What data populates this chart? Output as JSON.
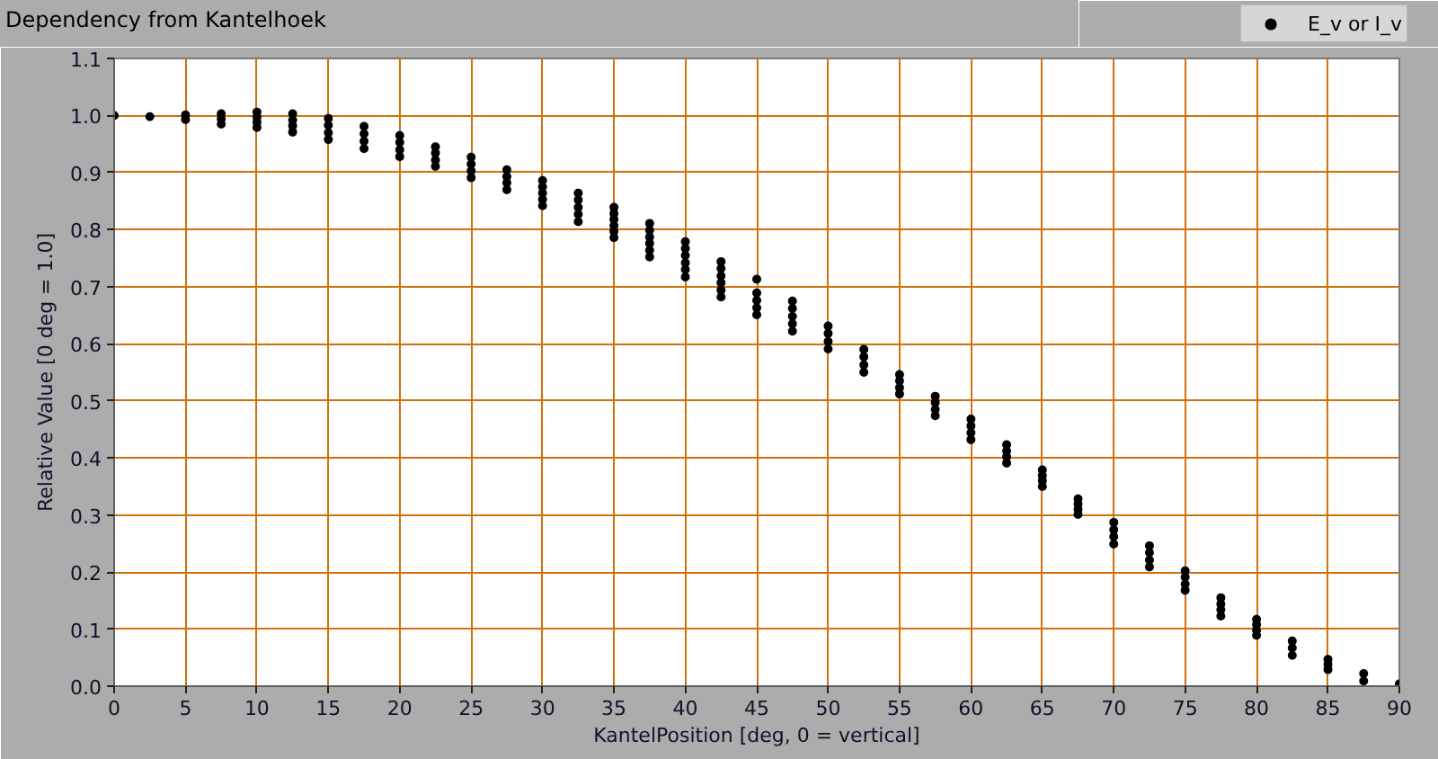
{
  "chart_data": {
    "type": "scatter",
    "title": "Dependency from Kantelhoek",
    "xlabel": "KantelPosition [deg, 0 = vertical]",
    "ylabel": "Relative Value [0 deg = 1.0]",
    "xlim": [
      0,
      90
    ],
    "ylim": [
      0,
      1.1
    ],
    "xticks": [
      0,
      5,
      10,
      15,
      20,
      25,
      30,
      35,
      40,
      45,
      50,
      55,
      60,
      65,
      70,
      75,
      80,
      85,
      90
    ],
    "yticks": [
      {
        "value": 0,
        "label": "0.0"
      },
      0.1,
      0.2,
      0.3,
      0.4,
      0.5,
      0.6,
      0.7,
      0.8,
      0.9,
      {
        "value": 1,
        "label": "1.0"
      },
      1.1
    ],
    "grid": true,
    "legend": "top right",
    "marker": "circle",
    "series": [
      {
        "name": "E_v or I_v",
        "color": "#000000",
        "x": [
          0,
          2.5,
          5,
          5,
          7.5,
          7.5,
          7.5,
          10,
          10,
          10,
          10,
          12.5,
          12.5,
          12.5,
          12.5,
          15,
          15,
          15,
          15,
          17.5,
          17.5,
          17.5,
          17.5,
          20,
          20,
          20,
          20,
          22.5,
          22.5,
          22.5,
          22.5,
          25,
          25,
          25,
          25,
          27.5,
          27.5,
          27.5,
          27.5,
          30,
          30,
          30,
          30,
          30,
          32.5,
          32.5,
          32.5,
          32.5,
          32.5,
          35,
          35,
          35,
          35,
          35,
          35,
          37.5,
          37.5,
          37.5,
          37.5,
          37.5,
          37.5,
          40,
          40,
          40,
          40,
          40,
          40,
          42.5,
          42.5,
          42.5,
          42.5,
          42.5,
          42.5,
          45,
          45,
          45,
          45,
          45,
          47.5,
          47.5,
          47.5,
          47.5,
          47.5,
          50,
          50,
          50,
          50,
          52.5,
          52.5,
          52.5,
          52.5,
          55,
          55,
          55,
          55,
          57.5,
          57.5,
          57.5,
          57.5,
          60,
          60,
          60,
          60,
          62.5,
          62.5,
          62.5,
          62.5,
          65,
          65,
          65,
          65,
          67.5,
          67.5,
          67.5,
          67.5,
          70,
          70,
          70,
          70,
          72.5,
          72.5,
          72.5,
          72.5,
          75,
          75,
          75,
          75,
          77.5,
          77.5,
          77.5,
          77.5,
          80,
          80,
          80,
          80,
          82.5,
          82.5,
          82.5,
          85,
          85,
          85,
          87.5,
          87.5,
          90
        ],
        "values": [
          1.0,
          0.998,
          1.001,
          0.993,
          1.003,
          0.994,
          0.985,
          1.006,
          0.997,
          0.988,
          0.979,
          1.003,
          0.992,
          0.982,
          0.971,
          0.995,
          0.983,
          0.97,
          0.958,
          0.981,
          0.968,
          0.955,
          0.942,
          0.965,
          0.953,
          0.94,
          0.928,
          0.945,
          0.934,
          0.922,
          0.911,
          0.927,
          0.915,
          0.903,
          0.891,
          0.905,
          0.893,
          0.882,
          0.87,
          0.886,
          0.875,
          0.864,
          0.853,
          0.842,
          0.864,
          0.852,
          0.839,
          0.827,
          0.814,
          0.839,
          0.828,
          0.818,
          0.807,
          0.797,
          0.786,
          0.811,
          0.799,
          0.787,
          0.776,
          0.764,
          0.752,
          0.779,
          0.767,
          0.755,
          0.742,
          0.73,
          0.717,
          0.744,
          0.732,
          0.719,
          0.707,
          0.694,
          0.682,
          0.713,
          0.689,
          0.676,
          0.663,
          0.651,
          0.675,
          0.662,
          0.648,
          0.635,
          0.622,
          0.631,
          0.618,
          0.604,
          0.591,
          0.59,
          0.577,
          0.563,
          0.55,
          0.546,
          0.535,
          0.523,
          0.512,
          0.508,
          0.497,
          0.485,
          0.474,
          0.468,
          0.456,
          0.444,
          0.432,
          0.423,
          0.412,
          0.402,
          0.391,
          0.379,
          0.369,
          0.36,
          0.35,
          0.328,
          0.319,
          0.31,
          0.301,
          0.287,
          0.274,
          0.262,
          0.249,
          0.246,
          0.234,
          0.221,
          0.209,
          0.202,
          0.191,
          0.179,
          0.168,
          0.155,
          0.144,
          0.134,
          0.123,
          0.117,
          0.108,
          0.098,
          0.089,
          0.079,
          0.067,
          0.054,
          0.047,
          0.038,
          0.029,
          0.022,
          0.009,
          0.004
        ]
      }
    ]
  }
}
